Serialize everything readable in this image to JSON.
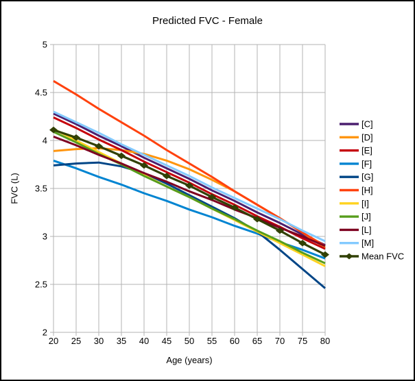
{
  "window": {
    "background": "#ffffff",
    "border_color": "#000000"
  },
  "chart_data": {
    "type": "line",
    "title": "Predicted FVC - Female",
    "xlabel": "Age (years)",
    "ylabel": "FVC (L)",
    "x": [
      20,
      25,
      30,
      35,
      40,
      45,
      50,
      55,
      60,
      65,
      70,
      75,
      80
    ],
    "xlim": [
      20,
      80
    ],
    "ylim": [
      2,
      5
    ],
    "xticks": [
      20,
      25,
      30,
      35,
      40,
      45,
      50,
      55,
      60,
      65,
      70,
      75,
      80
    ],
    "yticks": [
      2,
      2.5,
      3,
      3.5,
      4,
      4.5,
      5
    ],
    "grid": true,
    "gridline_color": "#b3b3b3",
    "axis_color": "#b3b3b3",
    "legend_position": "right",
    "series": [
      {
        "id": "c",
        "name": "[C]",
        "color": "#4B1F6F",
        "values": [
          4.28,
          4.17,
          4.05,
          3.94,
          3.82,
          3.71,
          3.6,
          3.48,
          3.37,
          3.25,
          3.14,
          3.02,
          2.91
        ]
      },
      {
        "id": "d",
        "name": "[D]",
        "color": "#FF950E",
        "values": [
          3.89,
          3.91,
          3.92,
          3.9,
          3.86,
          3.79,
          3.7,
          3.59,
          3.47,
          3.33,
          3.19,
          3.04,
          2.88
        ]
      },
      {
        "id": "e",
        "name": "[E]",
        "color": "#C5000B",
        "values": [
          4.24,
          4.13,
          4.01,
          3.9,
          3.78,
          3.67,
          3.56,
          3.44,
          3.33,
          3.21,
          3.1,
          2.98,
          2.87
        ]
      },
      {
        "id": "f",
        "name": "[F]",
        "color": "#0084D1",
        "values": [
          3.79,
          3.71,
          3.62,
          3.54,
          3.45,
          3.37,
          3.28,
          3.2,
          3.11,
          3.03,
          2.94,
          2.86,
          2.77
        ]
      },
      {
        "id": "g",
        "name": "[G]",
        "color": "#004586",
        "values": [
          3.74,
          3.76,
          3.77,
          3.73,
          3.66,
          3.55,
          3.43,
          3.31,
          3.19,
          3.05,
          2.86,
          2.66,
          2.46
        ]
      },
      {
        "id": "h",
        "name": "[H]",
        "color": "#FF420E",
        "values": [
          4.62,
          4.48,
          4.33,
          4.19,
          4.05,
          3.9,
          3.76,
          3.62,
          3.47,
          3.33,
          3.19,
          3.04,
          2.9
        ]
      },
      {
        "id": "i",
        "name": "[I]",
        "color": "#FFD320",
        "values": [
          4.12,
          4.0,
          3.88,
          3.76,
          3.64,
          3.52,
          3.41,
          3.29,
          3.17,
          3.05,
          2.93,
          2.81,
          2.69
        ]
      },
      {
        "id": "j",
        "name": "[J]",
        "color": "#579D1C",
        "values": [
          4.09,
          3.98,
          3.86,
          3.75,
          3.63,
          3.52,
          3.41,
          3.29,
          3.18,
          3.06,
          2.95,
          2.83,
          2.72
        ]
      },
      {
        "id": "l",
        "name": "[L]",
        "color": "#7E0021",
        "values": [
          4.04,
          3.95,
          3.85,
          3.76,
          3.66,
          3.57,
          3.47,
          3.38,
          3.28,
          3.19,
          3.09,
          3.0,
          2.9
        ]
      },
      {
        "id": "m",
        "name": "[M]",
        "color": "#83CAFF",
        "values": [
          4.3,
          4.19,
          4.08,
          3.96,
          3.85,
          3.74,
          3.63,
          3.51,
          3.4,
          3.29,
          3.18,
          3.06,
          2.95
        ]
      },
      {
        "id": "mean-fvc",
        "name": "Mean FVC",
        "color": "#314004",
        "marker": "diamond",
        "values": [
          4.11,
          4.03,
          3.94,
          3.84,
          3.74,
          3.63,
          3.53,
          3.41,
          3.3,
          3.18,
          3.06,
          2.93,
          2.81
        ]
      }
    ]
  }
}
